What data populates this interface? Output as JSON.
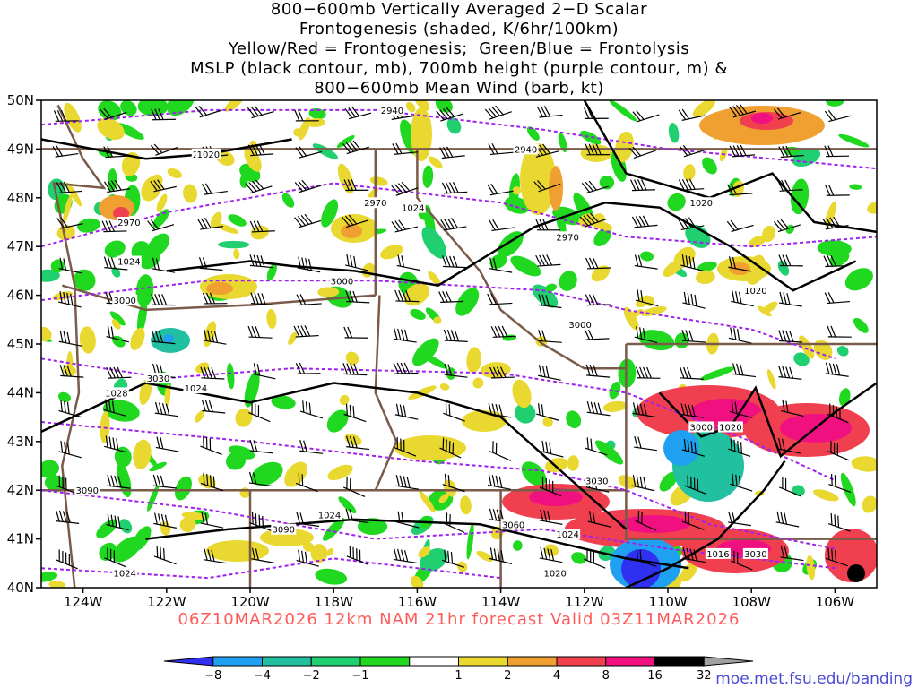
{
  "title_lines": [
    "800−600mb Vertically Averaged 2−D Scalar",
    "Frontogenesis (shaded, K/6hr/100km)",
    "Yellow/Red = Frontogenesis;  Green/Blue = Frontolysis",
    "MSLP (black contour, mb), 700mb height (purple contour, m) &",
    "800−600mb Mean Wind (barb, kt)"
  ],
  "map": {
    "lon_range": [
      -125,
      -105
    ],
    "lat_range": [
      40,
      50
    ],
    "lon_ticks": [
      "124W",
      "122W",
      "120W",
      "118W",
      "116W",
      "114W",
      "112W",
      "110W",
      "108W",
      "106W"
    ],
    "lat_ticks": [
      "50N",
      "49N",
      "48N",
      "47N",
      "46N",
      "45N",
      "44N",
      "43N",
      "42N",
      "41N",
      "40N"
    ],
    "colors": {
      "mslp": "#000000",
      "height": "#a020f0",
      "borders": "#7a5a48",
      "barbs": "#000000"
    }
  },
  "height_contour_labels": [
    "2940",
    "2940",
    "2940",
    "2970",
    "2970",
    "2970",
    "3000",
    "3000",
    "3000",
    "3000",
    "3030",
    "3030",
    "3030",
    "3060",
    "3090",
    "3090"
  ],
  "mslp_contour_labels": [
    "1020",
    "1020",
    "1020",
    "1020",
    "1024",
    "1024",
    "1024",
    "1024",
    "1024",
    "1024",
    "1028",
    "1016",
    "1020"
  ],
  "valid_text": "06Z10MAR2026 12km NAM 21hr forecast Valid 03Z11MAR2026",
  "colorbar": {
    "labels": [
      "−8",
      "−4",
      "−2",
      "−1",
      "1",
      "2",
      "4",
      "8",
      "16",
      "32"
    ],
    "colors": [
      "#3030f0",
      "#20a0f0",
      "#20c0a0",
      "#20d070",
      "#20d820",
      "#ffffff",
      "#e8d830",
      "#f0a030",
      "#f04050",
      "#f01080",
      "#000000",
      "#a0a0a0"
    ]
  },
  "credit": "moe.met.fsu.edu/banding"
}
